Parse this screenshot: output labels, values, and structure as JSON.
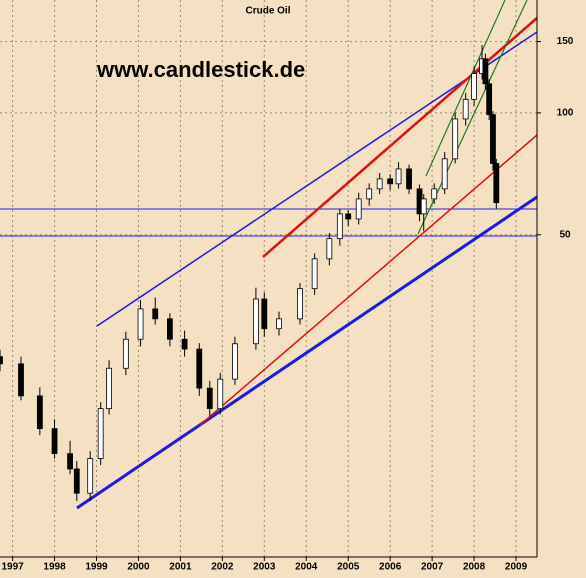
{
  "chart_data": {
    "type": "candlestick",
    "title": "Crude Oil",
    "watermark": "www.candlestick.de",
    "log_scale": true,
    "grid": true,
    "xlim": [
      1996.7,
      2009.5
    ],
    "xticks": [
      1997,
      1998,
      1999,
      2000,
      2001,
      2002,
      2003,
      2004,
      2005,
      2006,
      2007,
      2008,
      2009
    ],
    "ylim": [
      8,
      190
    ],
    "yticks": [
      50,
      100,
      150
    ],
    "up_color": "#ffffff",
    "down_color": "#000000",
    "x": [
      1996.7,
      1997.2,
      1997.65,
      1998.0,
      1998.37,
      1998.53,
      1998.85,
      1999.1,
      1999.3,
      1999.7,
      2000.05,
      2000.4,
      2000.75,
      2001.1,
      2001.45,
      2001.7,
      2001.95,
      2002.3,
      2002.8,
      2003.0,
      2003.35,
      2003.85,
      2004.2,
      2004.55,
      2004.8,
      2005.0,
      2005.25,
      2005.5,
      2005.75,
      2006.0,
      2006.2,
      2006.45,
      2006.7,
      2006.8,
      2007.05,
      2007.3,
      2007.55,
      2007.8,
      2008.0,
      2008.19,
      2008.27,
      2008.36,
      2008.45,
      2008.53
    ],
    "open": [
      25,
      24,
      20,
      16.6,
      14.4,
      13.2,
      11.5,
      14,
      18.6,
      23.4,
      27.6,
      32.8,
      31,
      27.6,
      26.1,
      20.9,
      18.6,
      22,
      26.9,
      34.7,
      29.3,
      31,
      36.8,
      43.6,
      48.9,
      56.3,
      54.7,
      61.3,
      64.9,
      68.7,
      66.8,
      72.7,
      64.9,
      56.3,
      61.3,
      64.9,
      77,
      96.6,
      108,
      125,
      136,
      118,
      99,
      75
    ],
    "high": [
      26,
      25,
      21,
      17.5,
      15.5,
      13.8,
      14.6,
      19.3,
      24.5,
      28.8,
      34.5,
      35,
      32,
      29,
      27,
      21.8,
      22.8,
      28,
      37,
      36,
      32.3,
      38,
      45,
      50.5,
      58,
      57.5,
      63.5,
      67,
      71,
      70.5,
      75.5,
      74.5,
      66.5,
      63,
      67,
      80,
      100,
      112,
      130,
      147,
      140,
      121,
      101,
      77
    ],
    "low": [
      23,
      19.5,
      16,
      14,
      12.8,
      11,
      11,
      13.5,
      18,
      22.5,
      26.5,
      30,
      26.5,
      25,
      20,
      17.8,
      18,
      21.3,
      26,
      28,
      28.2,
      30,
      35.5,
      42,
      47,
      52.5,
      53,
      59,
      63,
      64.5,
      65,
      63,
      54,
      51,
      59.5,
      63,
      75,
      93,
      104,
      121,
      114,
      96,
      72,
      58
    ],
    "close": [
      24,
      20,
      16.6,
      14.4,
      13.2,
      11.5,
      14,
      18.6,
      23.4,
      27.6,
      32.8,
      31,
      27.6,
      26.1,
      20.9,
      18.6,
      22,
      26.9,
      34.7,
      29.3,
      31,
      36.8,
      43.6,
      48.9,
      56.3,
      54.7,
      61.3,
      64.9,
      68.7,
      66.8,
      72.7,
      64.9,
      56.3,
      61.3,
      64.9,
      77,
      96.6,
      108,
      125,
      136,
      118,
      99,
      75,
      60
    ]
  }
}
